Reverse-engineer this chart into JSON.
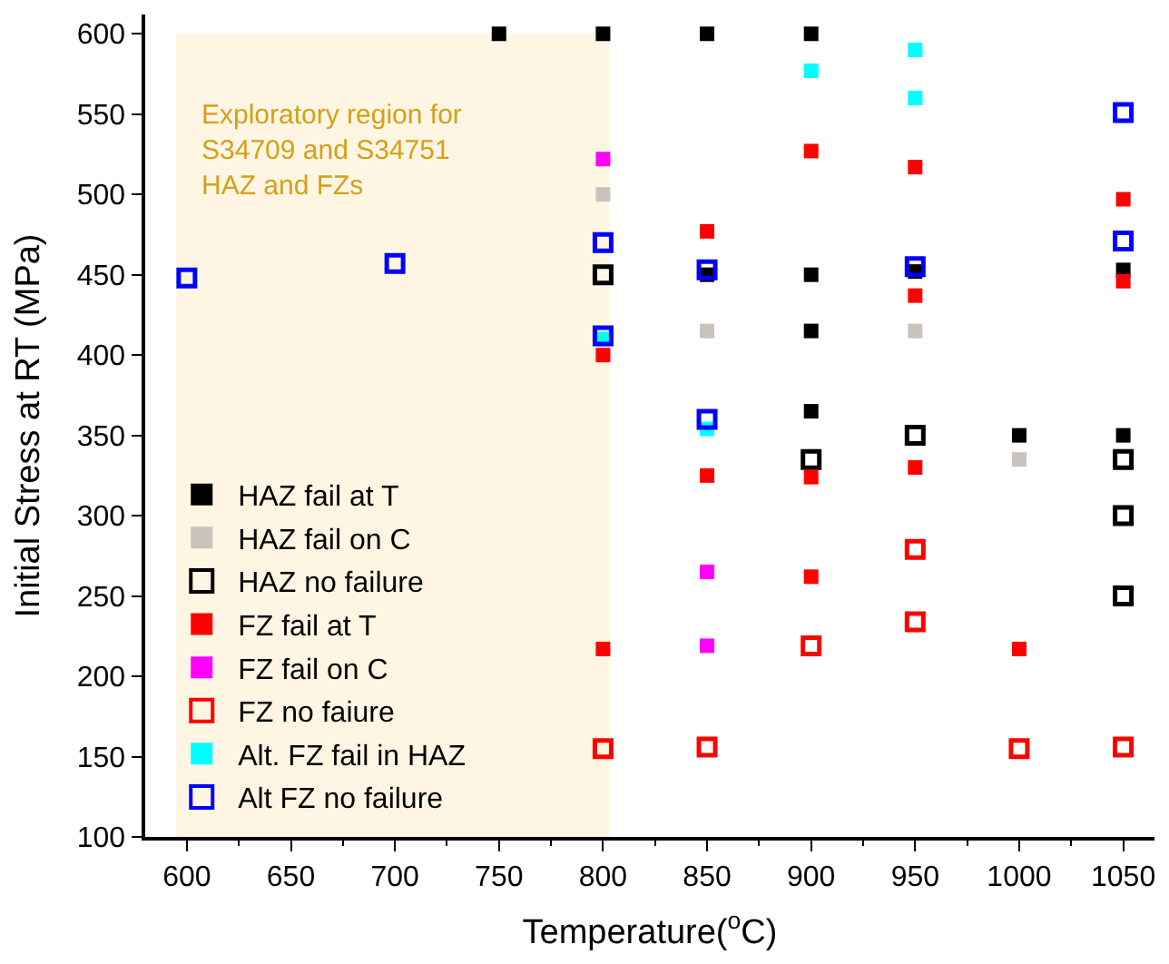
{
  "chart_data": {
    "type": "scatter",
    "xlabel": "Temperature($^{o}$C)",
    "ylabel": "Initial Stress at RT (MPa)",
    "xlim": [
      580,
      1065
    ],
    "ylim": [
      100,
      612
    ],
    "xticks": [
      600,
      650,
      700,
      750,
      800,
      850,
      900,
      950,
      1000,
      1050
    ],
    "yticks": [
      100,
      150,
      200,
      250,
      300,
      350,
      400,
      450,
      500,
      550,
      600
    ],
    "grid": false,
    "legend": "bottom left",
    "marker": "square",
    "bands": [
      {
        "axis": "x",
        "from": 595,
        "to": 803,
        "label": "Exploratory region for\nS34709 and S34751\nHAZ and FZs",
        "color": "#fff5e3"
      }
    ],
    "series": [
      {
        "name": "HAZ fail at T",
        "color": "#000000",
        "x": [
          750,
          800,
          850,
          900,
          900,
          900,
          900,
          1000,
          1050,
          1050,
          850,
          950
        ],
        "values": [
          600,
          600,
          600,
          600,
          450,
          415,
          365,
          350,
          350,
          453,
          450,
          452
        ]
      },
      {
        "name": "HAZ fail on C",
        "color": "#c8c4bc",
        "x": [
          800,
          850,
          950,
          1000
        ],
        "values": [
          500,
          415,
          415,
          335
        ]
      },
      {
        "name": "HAZ no failure",
        "color": "#000000",
        "marker": "square-open",
        "x": [
          800,
          900,
          950,
          1050,
          1050,
          1050
        ],
        "values": [
          450,
          335,
          350,
          335,
          300,
          250
        ]
      },
      {
        "name": "FZ fail at T",
        "color": "#ff0000",
        "x": [
          800,
          800,
          850,
          850,
          900,
          900,
          900,
          950,
          950,
          950,
          1000,
          1050,
          1050
        ],
        "values": [
          400,
          217,
          477,
          325,
          527,
          324,
          262,
          517,
          437,
          330,
          217,
          497,
          446
        ]
      },
      {
        "name": "FZ fail on C",
        "color": "#ff00ff",
        "x": [
          800,
          850,
          850
        ],
        "values": [
          522,
          265,
          219
        ]
      },
      {
        "name": "FZ no faiure",
        "color": "#ff0000",
        "marker": "square-open",
        "x": [
          800,
          850,
          900,
          950,
          950,
          1000,
          1050
        ],
        "values": [
          155,
          156,
          219,
          279,
          234,
          155,
          156
        ]
      },
      {
        "name": "Alt. FZ fail in HAZ",
        "color": "#00ffff",
        "x": [
          800,
          850,
          900,
          950,
          950
        ],
        "values": [
          410,
          354,
          577,
          590,
          560
        ]
      },
      {
        "name": "Alt FZ no failure",
        "color": "#0000ff",
        "marker": "square-open",
        "x": [
          600,
          700,
          800,
          800,
          850,
          850,
          950,
          1050,
          1050
        ],
        "values": [
          448,
          457,
          470,
          412,
          453,
          360,
          455,
          551,
          471
        ]
      }
    ]
  }
}
